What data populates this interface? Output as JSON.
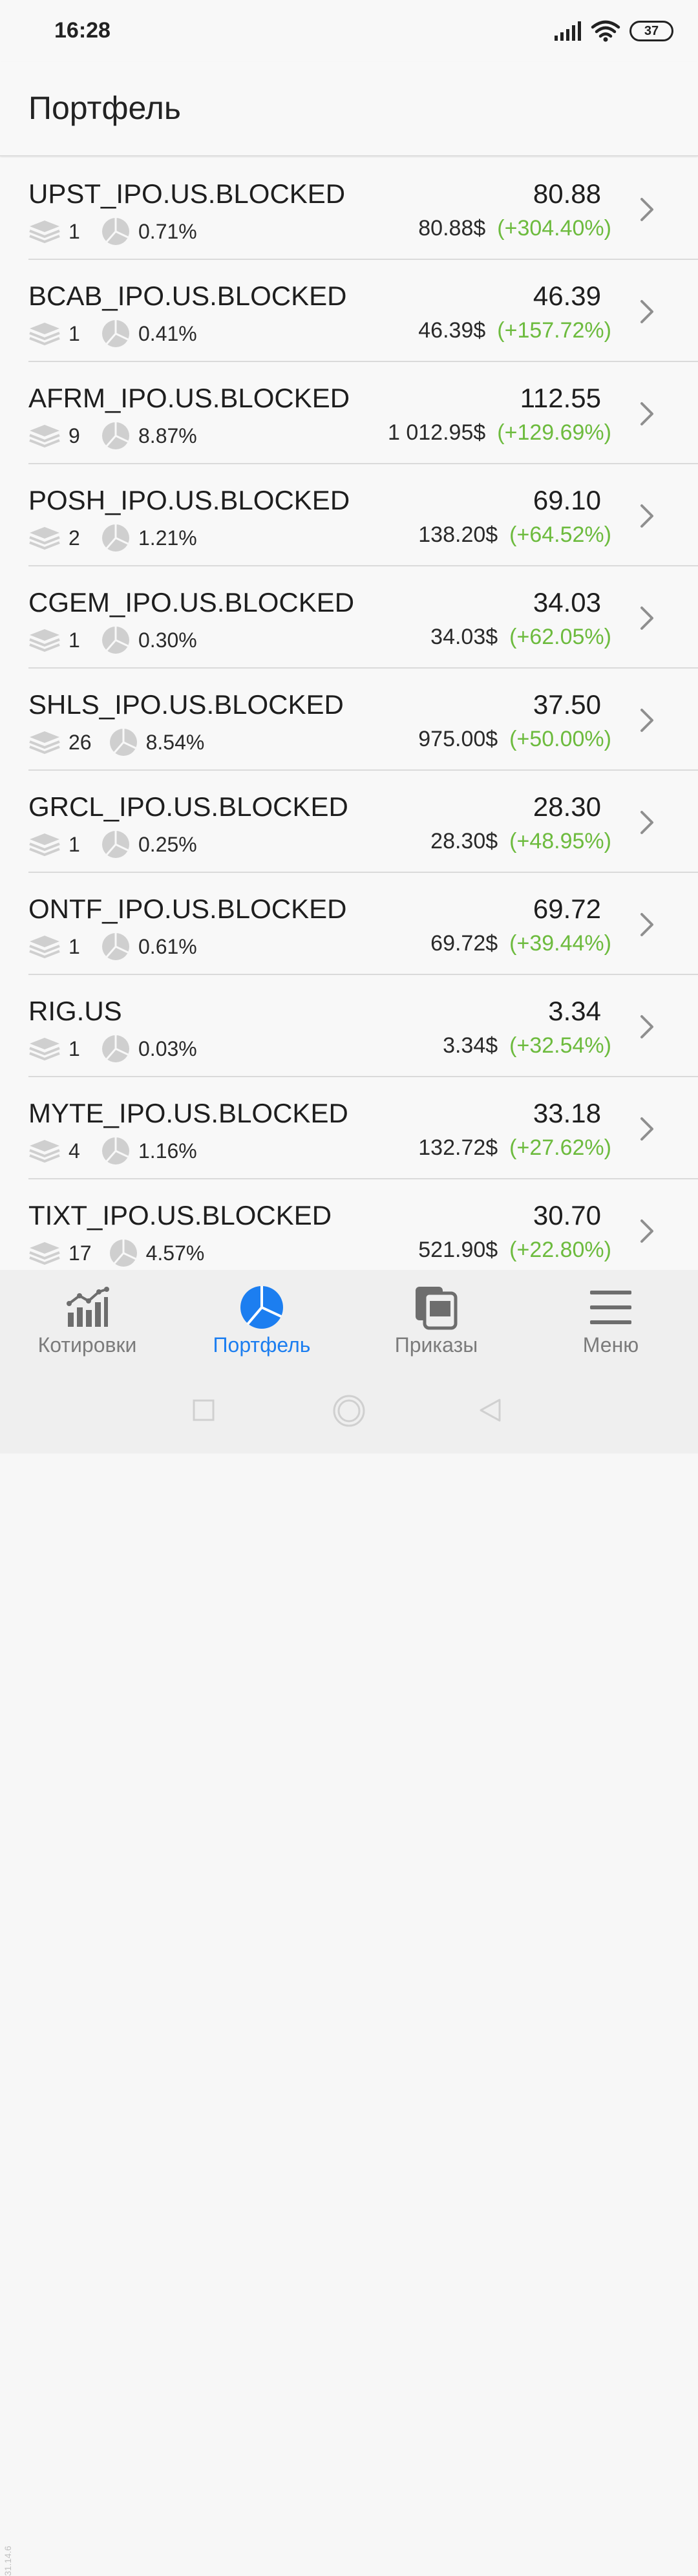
{
  "status": {
    "time": "16:28",
    "battery": "37"
  },
  "header": {
    "title": "Портфель"
  },
  "positions": [
    {
      "ticker": "UPST_IPO.US.BLOCKED",
      "qty": "1",
      "share": "0.71%",
      "price": "80.88",
      "amount": "80.88$",
      "change": "(+304.40%)"
    },
    {
      "ticker": "BCAB_IPO.US.BLOCKED",
      "qty": "1",
      "share": "0.41%",
      "price": "46.39",
      "amount": "46.39$",
      "change": "(+157.72%)"
    },
    {
      "ticker": "AFRM_IPO.US.BLOCKED",
      "qty": "9",
      "share": "8.87%",
      "price": "112.55",
      "amount": "1 012.95$",
      "change": "(+129.69%)"
    },
    {
      "ticker": "POSH_IPO.US.BLOCKED",
      "qty": "2",
      "share": "1.21%",
      "price": "69.10",
      "amount": "138.20$",
      "change": "(+64.52%)"
    },
    {
      "ticker": "CGEM_IPO.US.BLOCKED",
      "qty": "1",
      "share": "0.30%",
      "price": "34.03",
      "amount": "34.03$",
      "change": "(+62.05%)"
    },
    {
      "ticker": "SHLS_IPO.US.BLOCKED",
      "qty": "26",
      "share": "8.54%",
      "price": "37.50",
      "amount": "975.00$",
      "change": "(+50.00%)"
    },
    {
      "ticker": "GRCL_IPO.US.BLOCKED",
      "qty": "1",
      "share": "0.25%",
      "price": "28.30",
      "amount": "28.30$",
      "change": "(+48.95%)"
    },
    {
      "ticker": "ONTF_IPO.US.BLOCKED",
      "qty": "1",
      "share": "0.61%",
      "price": "69.72",
      "amount": "69.72$",
      "change": "(+39.44%)"
    },
    {
      "ticker": "RIG.US",
      "qty": "1",
      "share": "0.03%",
      "price": "3.34",
      "amount": "3.34$",
      "change": "(+32.54%)"
    },
    {
      "ticker": "MYTE_IPO.US.BLOCKED",
      "qty": "4",
      "share": "1.16%",
      "price": "33.18",
      "amount": "132.72$",
      "change": "(+27.62%)"
    },
    {
      "ticker": "TIXT_IPO.US.BLOCKED",
      "qty": "17",
      "share": "4.57%",
      "price": "30.70",
      "amount": "521.90$",
      "change": "(+22.80%)"
    }
  ],
  "tabs": [
    {
      "label": "Котировки",
      "icon": "chart-icon",
      "active": false
    },
    {
      "label": "Портфель",
      "icon": "pie-icon",
      "active": true
    },
    {
      "label": "Приказы",
      "icon": "orders-icon",
      "active": false
    },
    {
      "label": "Меню",
      "icon": "menu-icon",
      "active": false
    }
  ],
  "version": "31.14.6",
  "colors": {
    "accent": "#1c7ef0",
    "positive": "#6dbb3e"
  }
}
